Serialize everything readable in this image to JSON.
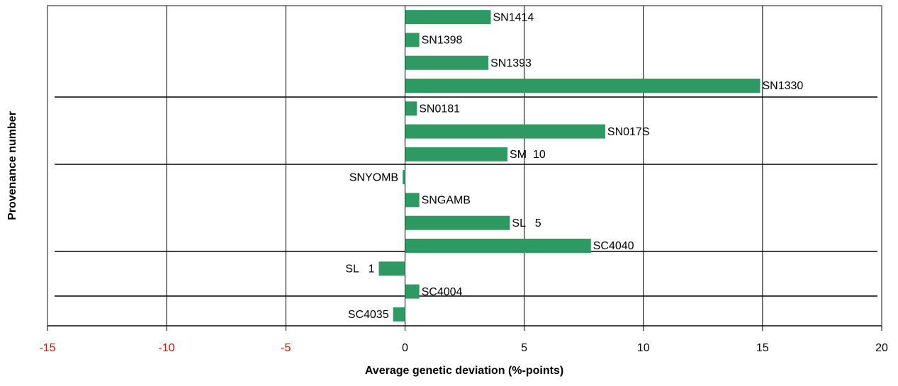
{
  "chart_data": {
    "type": "barh",
    "xlabel": "Average genetic deviation (%-points)",
    "ylabel": "Provenance number",
    "categories": [
      "SN1414",
      "SN1398",
      "SN1393",
      "SN1330",
      "SN0181",
      "SN017S",
      "SM  10",
      "SNYOMB",
      "SNGAMB",
      "SL   5",
      "SC4040",
      "SL   1",
      "SC4004",
      "SC4035"
    ],
    "values": [
      3.6,
      0.6,
      3.5,
      14.9,
      0.5,
      8.4,
      4.3,
      -0.1,
      0.6,
      4.4,
      7.8,
      -1.1,
      0.6,
      -0.5
    ],
    "color": "#2e9963",
    "xlim": [
      -15,
      20
    ],
    "xticks": [
      -15,
      -10,
      -5,
      0,
      5,
      10,
      15,
      20
    ],
    "negative_tick_color": "#ff0000",
    "grid": true
  }
}
